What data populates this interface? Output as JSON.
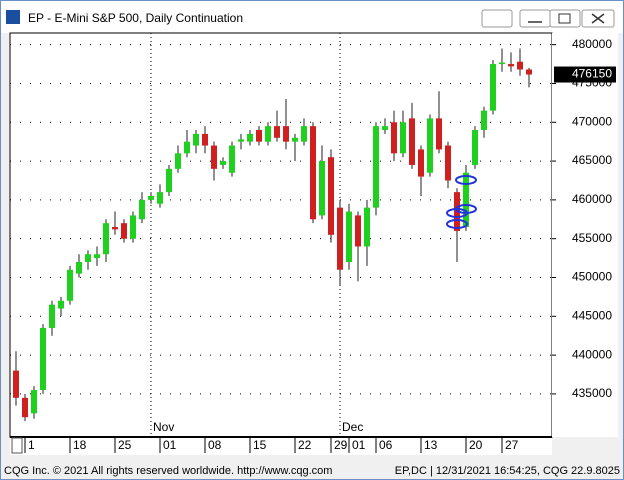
{
  "window_title": "EP - E-Mini S&P 500, Daily Continuation",
  "footer_left": "CQG Inc. © 2021 All rights reserved worldwide. http://www.cqg.com",
  "footer_right": "EP,DC | 12/31/2021 16:54:25, CQG 22.9.8025",
  "chart_data": {
    "type": "candlestick",
    "categories": [
      null,
      "1",
      null,
      null,
      null,
      null,
      "18",
      null,
      null,
      null,
      null,
      "25",
      null,
      null,
      null,
      null,
      "01",
      null,
      null,
      null,
      null,
      "08",
      null,
      null,
      null,
      null,
      "15",
      null,
      null,
      null,
      null,
      "22",
      null,
      null,
      null,
      "29",
      null,
      "01",
      null,
      null,
      "06",
      null,
      null,
      null,
      null,
      "13",
      null,
      null,
      null,
      null,
      "20",
      null,
      null,
      null,
      "27",
      null,
      null,
      null
    ],
    "months": [
      null,
      null,
      null,
      null,
      null,
      null,
      null,
      null,
      null,
      null,
      null,
      null,
      null,
      null,
      null,
      null,
      "Nov",
      null,
      null,
      null,
      null,
      null,
      null,
      null,
      null,
      null,
      null,
      null,
      null,
      null,
      null,
      null,
      null,
      null,
      null,
      null,
      null,
      "Dec",
      null,
      null,
      null,
      null,
      null,
      null,
      null,
      null,
      null,
      null,
      null,
      null,
      null,
      null,
      null,
      null,
      null,
      null,
      null,
      null
    ],
    "open": [
      438000,
      434500,
      432500,
      435500,
      443500,
      446000,
      447000,
      450500,
      452000,
      452500,
      453000,
      456500,
      457000,
      455000,
      457500,
      460000,
      459500,
      461000,
      464000,
      466000,
      467000,
      468500,
      467000,
      464500,
      463500,
      467500,
      467500,
      469000,
      467500,
      469500,
      469500,
      467500,
      467500,
      469500,
      458000,
      465500,
      459000,
      452000,
      458000,
      454000,
      459000,
      469000,
      470000,
      466000,
      470500,
      466500,
      463500,
      470500,
      467000,
      461000,
      456500,
      464500,
      469000,
      471500,
      477500,
      477500,
      477800,
      476800
    ],
    "high": [
      440500,
      435000,
      436000,
      444000,
      447000,
      447500,
      451500,
      453000,
      453500,
      454000,
      457500,
      458500,
      457500,
      458500,
      461000,
      461000,
      462000,
      464500,
      467000,
      469000,
      469000,
      469500,
      467500,
      465500,
      467500,
      468500,
      469000,
      469500,
      470000,
      471500,
      473000,
      468500,
      470500,
      470000,
      467000,
      466500,
      460000,
      459500,
      458500,
      460000,
      470000,
      470500,
      471500,
      471500,
      472500,
      467000,
      471000,
      474000,
      467500,
      461500,
      464500,
      469500,
      472000,
      478000,
      479500,
      479000,
      479500,
      477000
    ],
    "low": [
      433500,
      431500,
      431800,
      435000,
      442500,
      445000,
      446500,
      450000,
      451000,
      451500,
      452000,
      455500,
      454500,
      454500,
      457000,
      459500,
      459000,
      460500,
      463500,
      465500,
      466000,
      466000,
      462500,
      464000,
      463000,
      466500,
      467000,
      467000,
      467000,
      467500,
      466500,
      465000,
      467000,
      457000,
      457500,
      454500,
      449000,
      451000,
      449500,
      451500,
      458000,
      468500,
      465000,
      465500,
      464000,
      460500,
      463000,
      466000,
      461500,
      452000,
      456000,
      464000,
      468000,
      471000,
      476500,
      476500,
      476000,
      474500
    ],
    "close": [
      434500,
      432000,
      435500,
      443500,
      446500,
      447000,
      451000,
      452000,
      453000,
      453000,
      457000,
      456200,
      455000,
      458000,
      460000,
      460500,
      461000,
      464000,
      466000,
      467500,
      468500,
      467000,
      464000,
      465000,
      467000,
      467800,
      468500,
      467500,
      469500,
      468000,
      467500,
      468000,
      469500,
      457500,
      465000,
      455500,
      451000,
      458500,
      454000,
      459000,
      469500,
      469500,
      466000,
      470000,
      464500,
      463000,
      470500,
      466500,
      462500,
      456000,
      463500,
      469000,
      471500,
      477500,
      477700,
      477200,
      476800,
      476150
    ],
    "up_color": "#1fd01f",
    "down_color": "#d01f1f",
    "last_price": 476150,
    "ylim": [
      429450,
      481500
    ],
    "yticks": [
      435000,
      440000,
      445000,
      450000,
      455000,
      460000,
      465000,
      470000,
      475000,
      480000
    ],
    "grid": true
  }
}
